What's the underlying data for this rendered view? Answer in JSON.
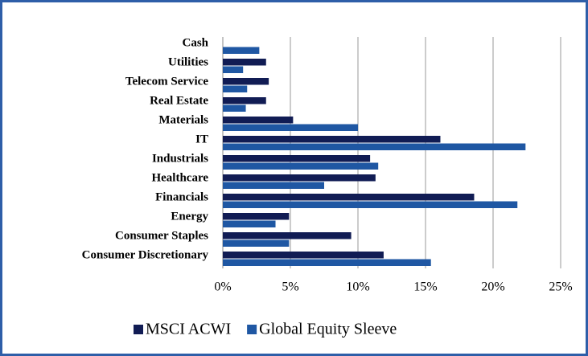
{
  "chart_data": {
    "type": "bar",
    "orientation": "horizontal",
    "categories": [
      "Cash",
      "Utilities",
      "Telecom Service",
      "Real Estate",
      "Materials",
      "IT",
      "Industrials",
      "Healthcare",
      "Financials",
      "Energy",
      "Consumer Staples",
      "Consumer Discretionary"
    ],
    "series": [
      {
        "name": "MSCI ACWI",
        "color": "#111c54",
        "values": [
          null,
          3.2,
          3.4,
          3.2,
          5.2,
          16.1,
          10.9,
          11.3,
          18.6,
          4.9,
          9.5,
          11.9
        ]
      },
      {
        "name": "Global Equity Sleeve",
        "color": "#1f57a3",
        "values": [
          2.7,
          1.5,
          1.8,
          1.7,
          10.0,
          22.4,
          11.5,
          7.5,
          21.8,
          3.9,
          4.9,
          15.4
        ]
      }
    ],
    "xlim": [
      0,
      25
    ],
    "xticks": [
      {
        "value": 0,
        "label": "0%"
      },
      {
        "value": 5,
        "label": "5%"
      },
      {
        "value": 10,
        "label": "10%"
      },
      {
        "value": 15,
        "label": "15%"
      },
      {
        "value": 20,
        "label": "20%"
      },
      {
        "value": 25,
        "label": "25%"
      }
    ],
    "grid": true,
    "legend": "bottom"
  }
}
